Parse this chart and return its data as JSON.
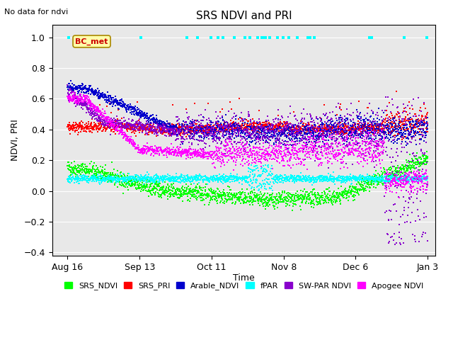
{
  "title": "SRS NDVI and PRI",
  "xlabel": "Time",
  "ylabel": "NDVI, PRI",
  "no_data_text": "No data for ndvi",
  "bc_met_label": "BC_met",
  "ylim": [
    -0.42,
    1.08
  ],
  "yticks": [
    -0.4,
    -0.2,
    0.0,
    0.2,
    0.4,
    0.6,
    0.8,
    1.0
  ],
  "xtick_labels": [
    "Aug 16",
    "Sep 13",
    "Oct 11",
    "Nov 8",
    "Dec 6",
    "Jan 3"
  ],
  "bg_color": "#e8e8e8",
  "fig_bg": "#ffffff",
  "legend": [
    {
      "label": "SRS_NDVI",
      "color": "#00ff00"
    },
    {
      "label": "SRS_PRI",
      "color": "#ff0000"
    },
    {
      "label": "Arable_NDVI",
      "color": "#0000cc"
    },
    {
      "label": "fPAR",
      "color": "#00ffff"
    },
    {
      "label": "SW-PAR NDVI",
      "color": "#8800cc"
    },
    {
      "label": "Apogee NDVI",
      "color": "#ff00ff"
    }
  ],
  "marker_size": 1.5,
  "bc_met_box_color": "#ffffaa",
  "bc_met_text_color": "#cc0000"
}
